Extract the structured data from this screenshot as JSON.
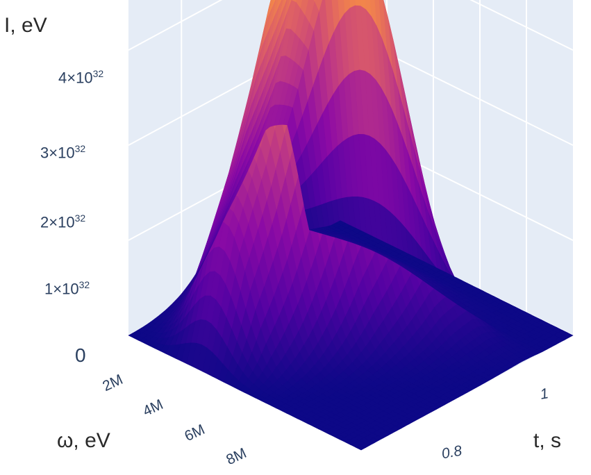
{
  "chart_data": {
    "type": "surface",
    "colorscale": "plasma",
    "colors": {
      "pane": "#e5ecf6",
      "grid": "#ffffff",
      "low": "#0d0887",
      "high": "#f0f921"
    },
    "axes": {
      "z": {
        "title": "I, eV",
        "range": [
          0,
          4.6e+32
        ],
        "ticks": [
          {
            "value": 0,
            "label": "0"
          },
          {
            "mant": "1",
            "exp": "32"
          },
          {
            "mant": "2",
            "exp": "32"
          },
          {
            "mant": "3",
            "exp": "32"
          },
          {
            "mant": "4",
            "exp": "32"
          }
        ]
      },
      "omega": {
        "title": "ω, eV",
        "range": [
          0,
          10000000
        ],
        "ticks": [
          "2M",
          "4M",
          "6M",
          "8M"
        ]
      },
      "t": {
        "title": "t, s",
        "range": [
          0.7,
          1.1
        ],
        "ticks": [
          "0.8",
          "1"
        ]
      }
    },
    "surface": {
      "omega_peak": 3000000,
      "t": [
        1.1,
        1.05,
        1.0,
        0.96,
        0.92,
        0.88,
        0.84,
        0.8,
        0.76,
        0.72,
        0.7
      ],
      "peak_I": [
        5e+29,
        1.4e+32,
        2.2e+32,
        3e+32,
        3.9e+32,
        4.2e+32,
        4.6e+32,
        3.6e+32,
        2e+31,
        1e+30,
        5e+29
      ]
    }
  }
}
